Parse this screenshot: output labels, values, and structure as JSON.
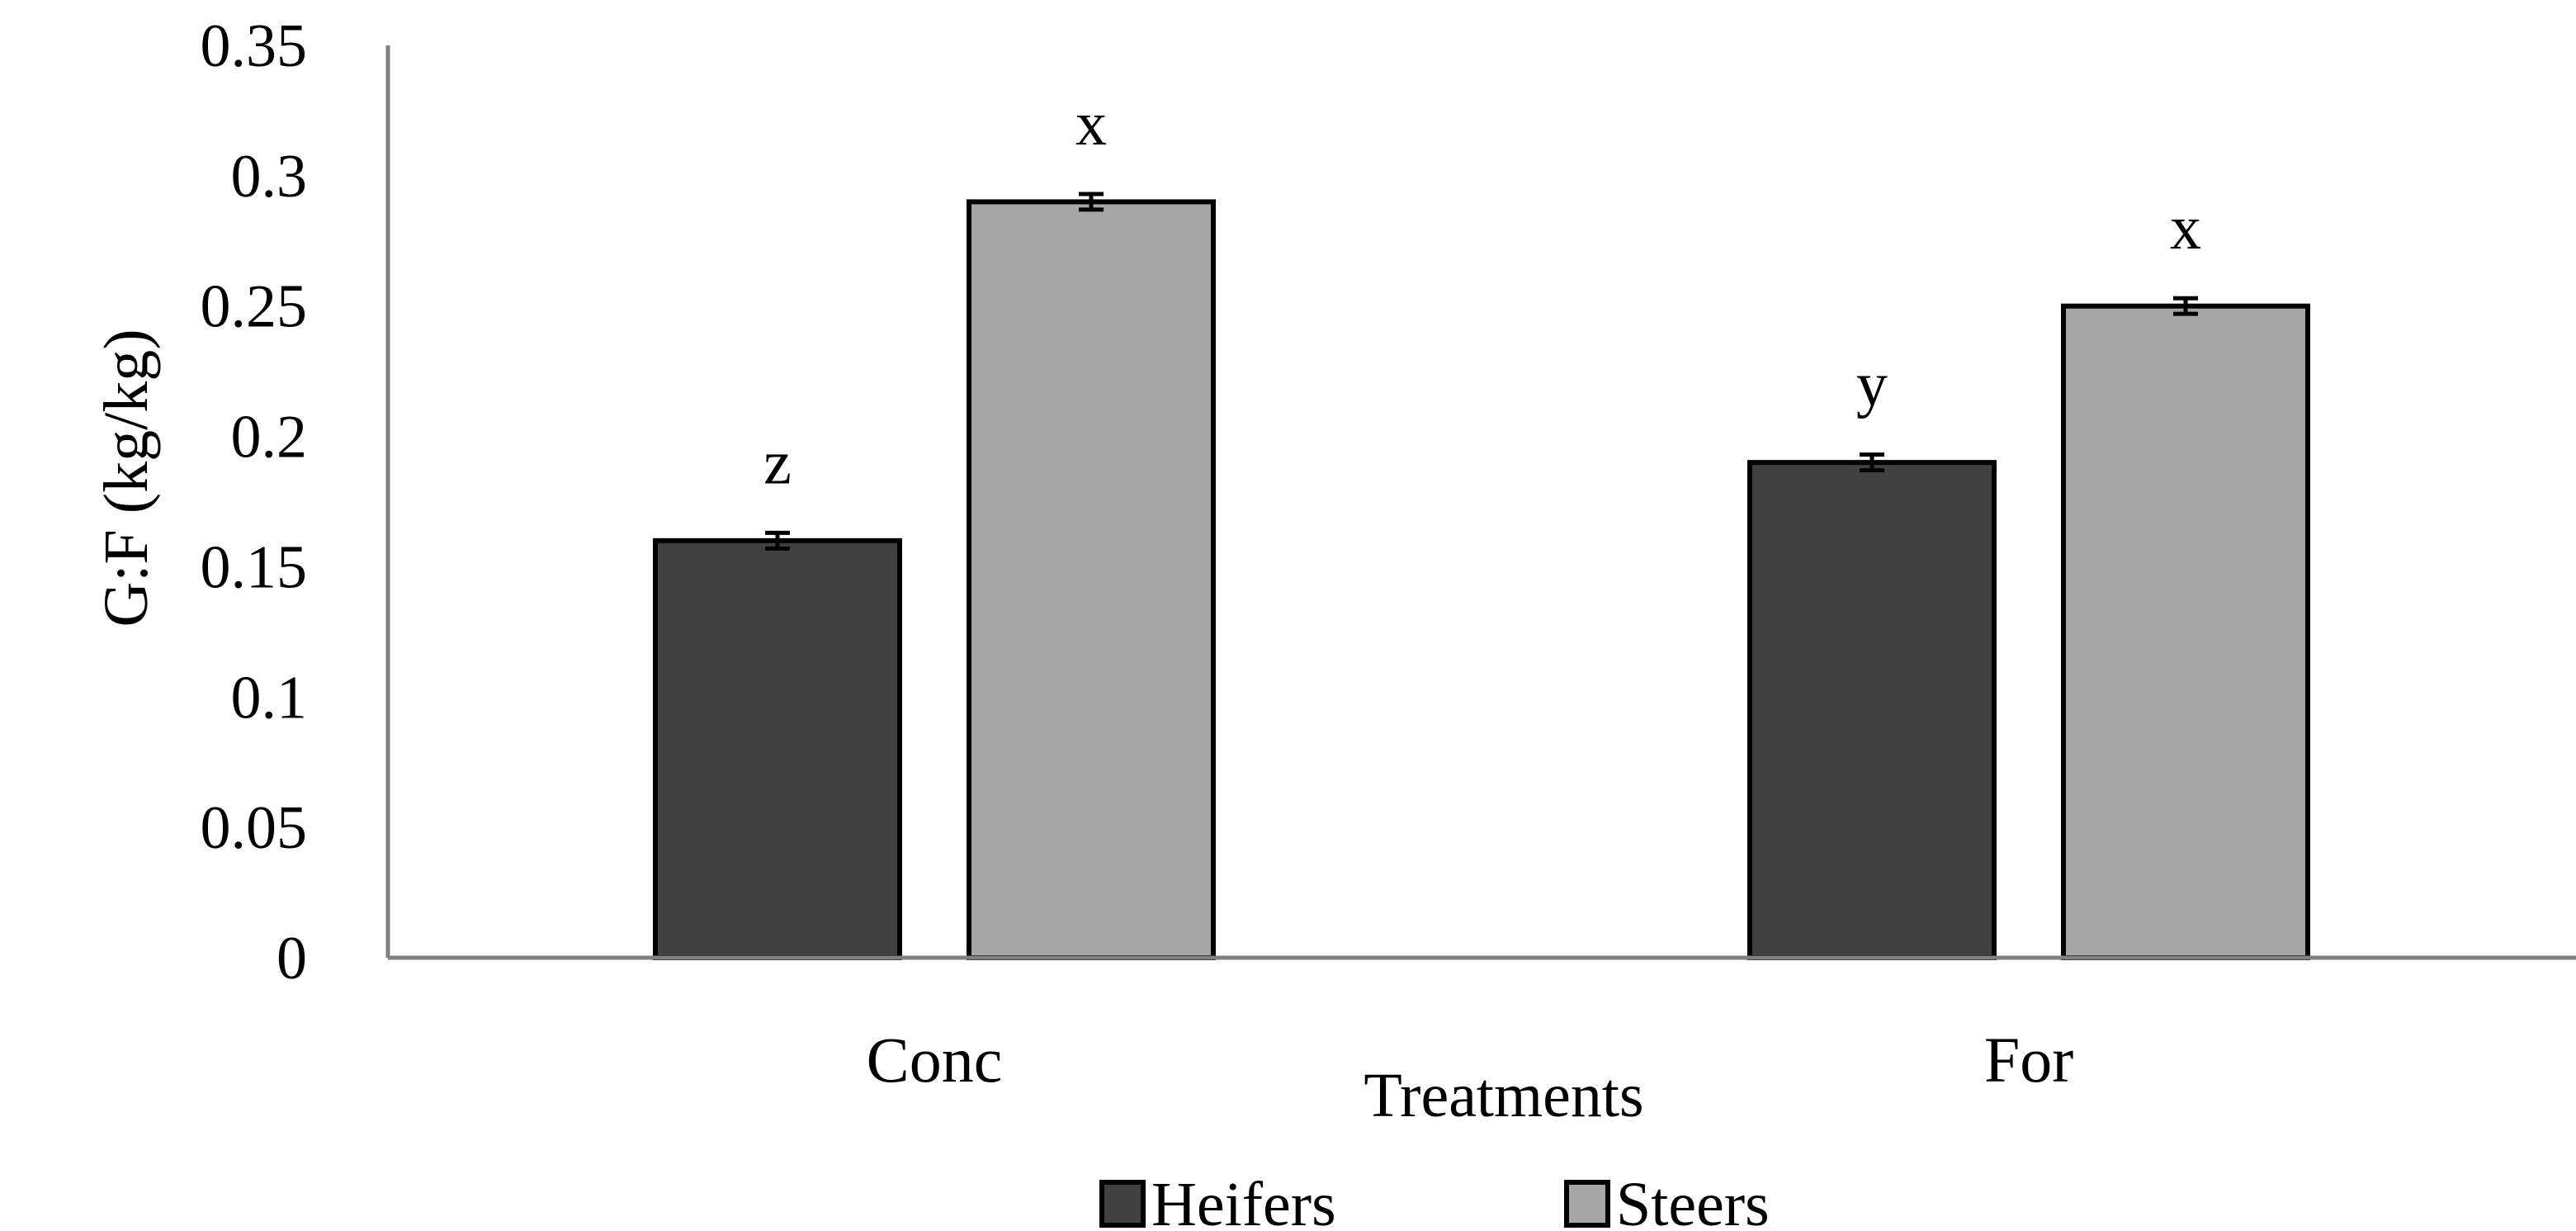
{
  "chart_data": {
    "type": "bar",
    "title": "",
    "xlabel": "Treatments",
    "ylabel": "G:F (kg/kg)",
    "ylim": [
      0,
      0.35
    ],
    "yticks": [
      "0",
      "0.05",
      "0.1",
      "0.15",
      "0.2",
      "0.25",
      "0.3",
      "0.35"
    ],
    "ytick_values": [
      0,
      0.05,
      0.1,
      0.15,
      0.2,
      0.25,
      0.3,
      0.35
    ],
    "categories": [
      "Conc",
      "For"
    ],
    "series": [
      {
        "name": "Heifers",
        "color": "#404040",
        "values": [
          0.16,
          0.19
        ],
        "errors": [
          0.003,
          0.003
        ],
        "labels": [
          "z",
          "y"
        ]
      },
      {
        "name": "Steers",
        "color": "#a6a6a6",
        "values": [
          0.29,
          0.25
        ],
        "errors": [
          0.003,
          0.003
        ],
        "labels": [
          "x",
          "x"
        ]
      }
    ],
    "legend_position": "bottom",
    "grid": false
  }
}
